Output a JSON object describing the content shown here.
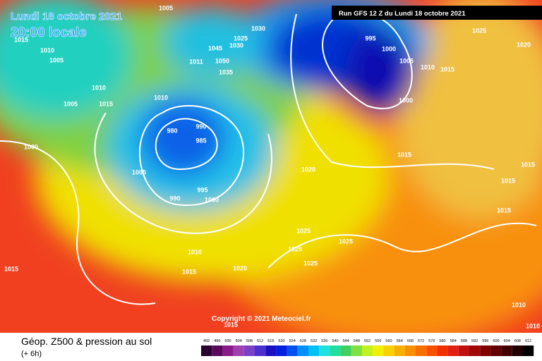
{
  "header": {
    "date": "Lundi 18 octobre 2021",
    "time": "20:00 locale",
    "run": "Run GFS 12 Z du Lundi 18 octobre 2021"
  },
  "map": {
    "isobar_labels": [
      "1015",
      "1010",
      "1005",
      "1010",
      "1015",
      "1005",
      "1000",
      "1005",
      "980",
      "990",
      "985",
      "995",
      "990",
      "1000",
      "1010",
      "1015",
      "1020",
      "1015",
      "1025",
      "1025",
      "1025",
      "1025",
      "1020",
      "1015",
      "1000",
      "995",
      "1000",
      "1005",
      "1010",
      "1015",
      "1025",
      "1020",
      "1015",
      "1015",
      "1015",
      "1010",
      "1010",
      "1015",
      "1030",
      "1025",
      "1030",
      "1045",
      "1050",
      "1035",
      "1011",
      "1010",
      "1005",
      "1020"
    ],
    "copyright": "Copyright © 2021 Meteociel.fr"
  },
  "footer": {
    "title": "Géop. Z500 & pression au sol",
    "step": "(+ 6h)",
    "scale": {
      "values": [
        492,
        496,
        500,
        504,
        508,
        512,
        516,
        520,
        524,
        528,
        532,
        536,
        540,
        544,
        548,
        552,
        556,
        560,
        564,
        568,
        572,
        576,
        580,
        584,
        588,
        592,
        596,
        600,
        604,
        608,
        612
      ],
      "colors": [
        "#2a0030",
        "#5a0a5a",
        "#8a1a8a",
        "#a040b0",
        "#7a40c8",
        "#4a30d0",
        "#1a10c0",
        "#0020e0",
        "#0050f0",
        "#0090f8",
        "#00c0f8",
        "#20e0e0",
        "#20e0a0",
        "#40d060",
        "#80e040",
        "#c0f020",
        "#f0f000",
        "#f8d000",
        "#f8b000",
        "#f89000",
        "#f87000",
        "#f85000",
        "#f03000",
        "#e02010",
        "#c01010",
        "#a00808",
        "#800000",
        "#600000",
        "#400000",
        "#200000",
        "#000000"
      ]
    }
  }
}
